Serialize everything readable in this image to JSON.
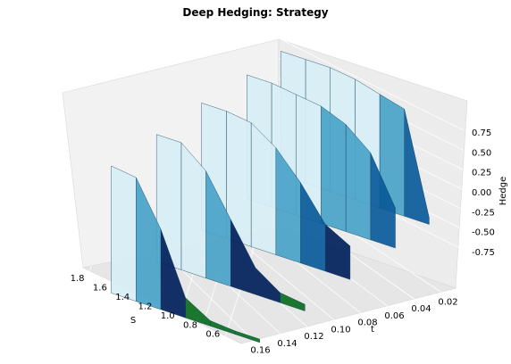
{
  "chart_data": {
    "type": "surface3d",
    "title": "Deep Hedging: Strategy",
    "xlabel": "S",
    "ylabel": "t",
    "zlabel": "Hedge",
    "x_ticks": [
      "1.8",
      "1.6",
      "1.4",
      "1.2",
      "1.0",
      "0.8",
      "0.6"
    ],
    "y_ticks": [
      "0.16",
      "0.14",
      "0.12",
      "0.10",
      "0.08",
      "0.06",
      "0.04",
      "0.02"
    ],
    "z_ticks": [
      "0.75",
      "0.50",
      "0.25",
      "0.00",
      "-0.25",
      "-0.50",
      "-0.75"
    ],
    "xlim": [
      0.55,
      1.85
    ],
    "ylim": [
      0.0,
      0.17
    ],
    "zlim": [
      -1.0,
      1.0
    ],
    "colormap": "ocean-to-light-blue",
    "colors": {
      "low": "#0a6e1e",
      "mid_low": "#00205b",
      "mid": "#0a5a9a",
      "mid_high": "#4aa3c8",
      "high": "#d8eef5"
    },
    "grid": true,
    "surface_description_rows": [
      {
        "t": 0.16,
        "S": [
          0.6,
          0.8,
          1.0,
          1.2,
          1.4,
          1.6,
          1.8
        ],
        "hedge": [
          -0.95,
          -0.95,
          -0.92,
          -0.7,
          0.2,
          0.85,
          0.9
        ]
      },
      {
        "t": 0.12,
        "S": [
          0.6,
          0.8,
          1.0,
          1.2,
          1.4,
          1.6,
          1.8
        ],
        "hedge": [
          -0.9,
          -0.85,
          -0.6,
          0.0,
          0.6,
          0.9,
          0.9
        ]
      },
      {
        "t": 0.08,
        "S": [
          0.6,
          0.8,
          1.0,
          1.2,
          1.4,
          1.6,
          1.8
        ],
        "hedge": [
          -0.5,
          -0.3,
          0.2,
          0.6,
          0.85,
          0.9,
          0.9
        ]
      },
      {
        "t": 0.04,
        "S": [
          0.6,
          0.8,
          1.0,
          1.2,
          1.4,
          1.6,
          1.8
        ],
        "hedge": [
          -0.4,
          0.3,
          0.6,
          0.75,
          0.8,
          0.85,
          0.85
        ]
      },
      {
        "t": 0.01,
        "S": [
          0.6,
          0.8,
          1.0,
          1.2,
          1.4,
          1.6,
          1.8
        ],
        "hedge": [
          -0.9,
          0.6,
          0.7,
          0.8,
          0.85,
          0.85,
          0.85
        ]
      }
    ]
  }
}
